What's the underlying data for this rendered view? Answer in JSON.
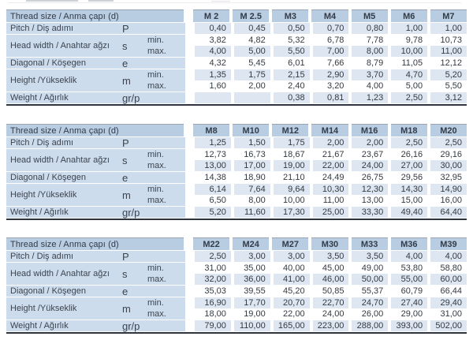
{
  "colors": {
    "header_bg": "#b8cce2",
    "label_bg": "#ccdcec",
    "light_row_bg": "#dde6f1",
    "white_row_bg": "#ffffff",
    "bottom_border": "#2f3540",
    "header_top_edge": "#9aa4b0",
    "text": "#343a42"
  },
  "shared": {
    "header_label": "Thread size / Anma çapı (d)",
    "row_defs": [
      {
        "label": "Pitch / Diş adımı",
        "symbol": "P",
        "lines": [
          {
            "qualifier": "",
            "key": "pitch",
            "shade": "light"
          }
        ]
      },
      {
        "label": "Head width / Anahtar ağzı",
        "symbol": "s",
        "lines": [
          {
            "qualifier": "min.",
            "key": "s_min",
            "shade": "white"
          },
          {
            "qualifier": "max.",
            "key": "s_max",
            "shade": "light"
          }
        ]
      },
      {
        "label": "Diagonal / Köşegen",
        "symbol": "e",
        "lines": [
          {
            "qualifier": "",
            "key": "e",
            "shade": "white"
          }
        ]
      },
      {
        "label": "Height /Yükseklik",
        "symbol": "m",
        "lines": [
          {
            "qualifier": "min.",
            "key": "m_min",
            "shade": "light"
          },
          {
            "qualifier": "max.",
            "key": "m_max",
            "shade": "white"
          }
        ]
      },
      {
        "label": "Weight / Ağırlık",
        "symbol": "gr/p",
        "lines": [
          {
            "qualifier": "",
            "key": "weight",
            "shade": "light"
          }
        ]
      }
    ]
  },
  "tables": [
    {
      "columns": [
        "M 2",
        "M 2.5",
        "M3",
        "M4",
        "M5",
        "M6",
        "M7"
      ],
      "values": {
        "pitch": [
          "0,40",
          "0,45",
          "0,50",
          "0,70",
          "0,80",
          "1,00",
          "1,00"
        ],
        "s_min": [
          "3,82",
          "4,82",
          "5,32",
          "6,78",
          "7,78",
          "9,78",
          "10,73"
        ],
        "s_max": [
          "4,00",
          "5,00",
          "5,50",
          "7,00",
          "8,00",
          "10,00",
          "11,00"
        ],
        "e": [
          "4,32",
          "5,45",
          "6,01",
          "7,66",
          "8,79",
          "11,05",
          "12,12"
        ],
        "m_min": [
          "1,35",
          "1,75",
          "2,15",
          "2,90",
          "3,70",
          "4,70",
          "5,20"
        ],
        "m_max": [
          "1,60",
          "2,00",
          "2,40",
          "3,20",
          "4,00",
          "5,00",
          "5,50"
        ],
        "weight": [
          "",
          "",
          "0,38",
          "0,81",
          "1,23",
          "2,50",
          "3,12"
        ]
      }
    },
    {
      "columns": [
        "M8",
        "M10",
        "M12",
        "M14",
        "M16",
        "M18",
        "M20"
      ],
      "values": {
        "pitch": [
          "1,25",
          "1,50",
          "1,75",
          "2,00",
          "2,00",
          "2,50",
          "2,50"
        ],
        "s_min": [
          "12,73",
          "16,73",
          "18,67",
          "21,67",
          "23,67",
          "26,16",
          "29,16"
        ],
        "s_max": [
          "13,00",
          "17,00",
          "19,00",
          "22,00",
          "24,00",
          "27,00",
          "30,00"
        ],
        "e": [
          "14,38",
          "18,90",
          "21,10",
          "24,49",
          "26,75",
          "29,56",
          "32,95"
        ],
        "m_min": [
          "6,14",
          "7,64",
          "9,64",
          "10,30",
          "12,30",
          "14,30",
          "14,90"
        ],
        "m_max": [
          "6,50",
          "8,00",
          "10,00",
          "11,00",
          "13,00",
          "15,00",
          "16,00"
        ],
        "weight": [
          "5,20",
          "11,60",
          "17,30",
          "25,00",
          "33,30",
          "49,40",
          "64,40"
        ]
      }
    },
    {
      "columns": [
        "M22",
        "M24",
        "M27",
        "M30",
        "M33",
        "M36",
        "M39"
      ],
      "values": {
        "pitch": [
          "2,50",
          "3,00",
          "3,00",
          "3,50",
          "3,50",
          "4,00",
          "4,00"
        ],
        "s_min": [
          "31,00",
          "35,00",
          "40,00",
          "45,00",
          "49,00",
          "53,80",
          "58,80"
        ],
        "s_max": [
          "32,00",
          "36,00",
          "41,00",
          "46,00",
          "50,00",
          "55,00",
          "60,00"
        ],
        "e": [
          "35,03",
          "39,55",
          "45,20",
          "50,85",
          "55,37",
          "60,79",
          "66,44"
        ],
        "m_min": [
          "16,90",
          "17,70",
          "20,70",
          "22,70",
          "24,70",
          "27,40",
          "29,40"
        ],
        "m_max": [
          "18,00",
          "19,00",
          "22,00",
          "24,00",
          "26,00",
          "29,00",
          "31,00"
        ],
        "weight": [
          "79,00",
          "110,00",
          "165,00",
          "223,00",
          "288,00",
          "393,00",
          "502,00"
        ]
      }
    }
  ]
}
